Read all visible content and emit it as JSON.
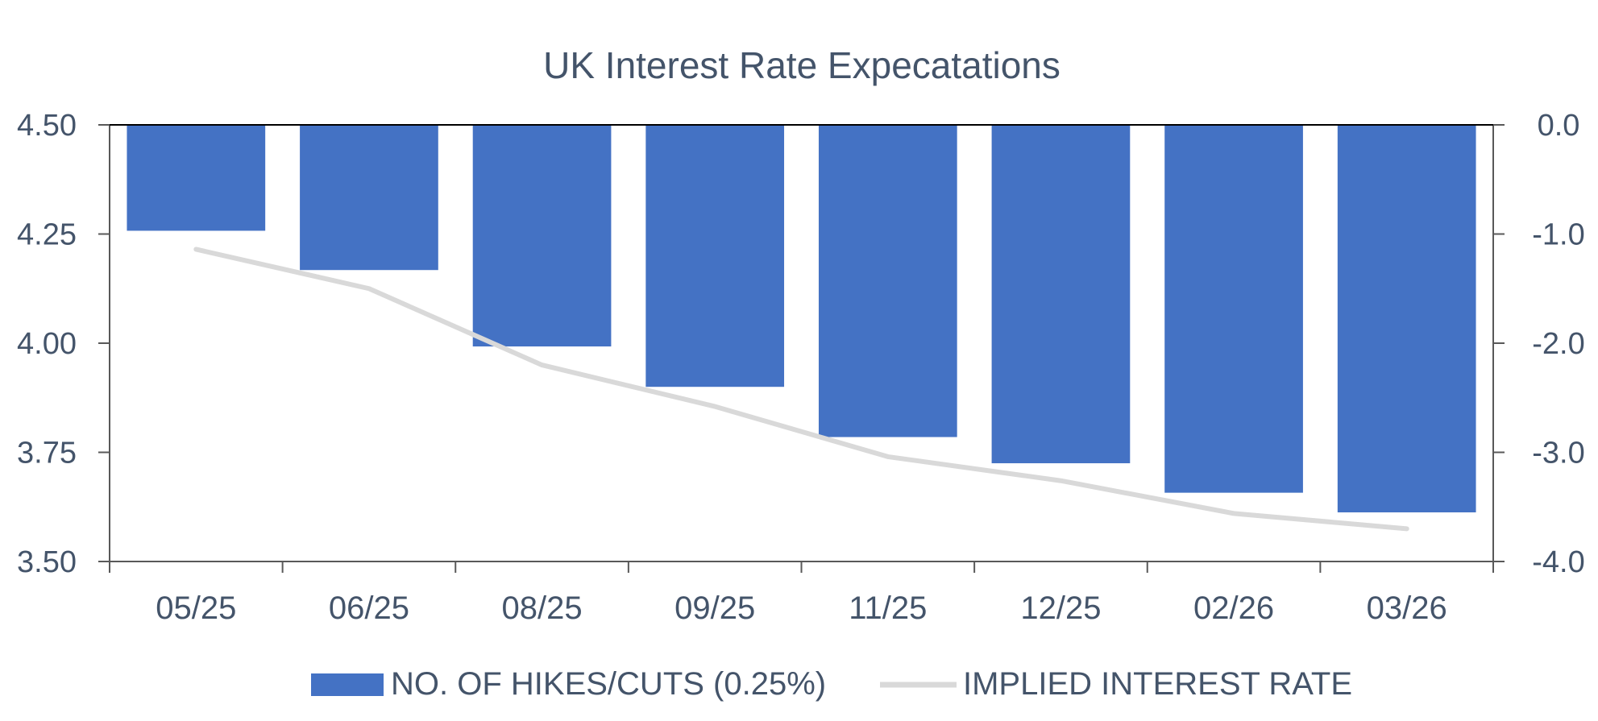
{
  "chart_data": {
    "type": "bar",
    "title": "UK Interest Rate Expecatations",
    "categories": [
      "05/25",
      "06/25",
      "08/25",
      "09/25",
      "11/25",
      "12/25",
      "02/26",
      "03/26"
    ],
    "y_left": {
      "range": [
        3.5,
        4.5
      ],
      "ticks": [
        "4.50",
        "4.25",
        "4.00",
        "3.75",
        "3.50"
      ],
      "tick_values": [
        4.5,
        4.25,
        4.0,
        3.75,
        3.5
      ]
    },
    "y_right": {
      "range": [
        -4.0,
        0.0
      ],
      "ticks": [
        "0.0",
        "-1.0",
        "-2.0",
        "-3.0",
        "-4.0"
      ],
      "tick_values": [
        0.0,
        -1.0,
        -2.0,
        -3.0,
        -4.0
      ]
    },
    "series": [
      {
        "name": "NO. OF HIKES/CUTS (0.25%)",
        "kind": "bar",
        "axis": "right",
        "color": "#4472C4",
        "values": [
          -0.97,
          -1.33,
          -2.03,
          -2.4,
          -2.86,
          -3.1,
          -3.37,
          -3.55
        ]
      },
      {
        "name": "IMPLIED INTEREST RATE",
        "kind": "line",
        "axis": "left",
        "color": "#D9D9D9",
        "values": [
          4.215,
          4.125,
          3.95,
          3.855,
          3.74,
          3.685,
          3.61,
          3.575
        ]
      }
    ],
    "grid": false,
    "legend": "bottom"
  }
}
